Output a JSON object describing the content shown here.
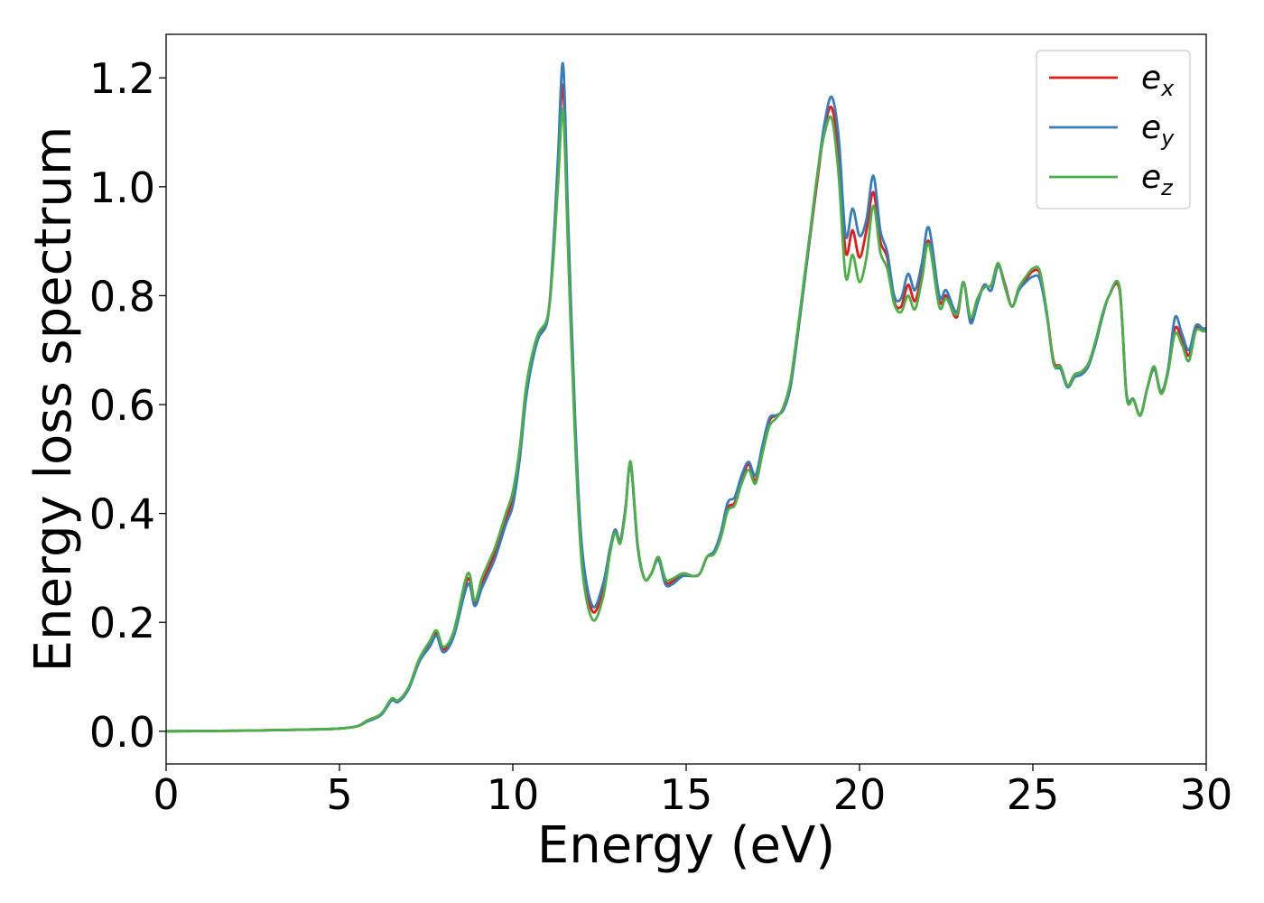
{
  "chart_data": {
    "type": "line",
    "title": "",
    "xlabel": "Energy (eV)",
    "ylabel": "Energy loss spectrum",
    "xlim": [
      0,
      30
    ],
    "ylim": [
      -0.06,
      1.28
    ],
    "xticks": [
      0,
      5,
      10,
      15,
      20,
      25,
      30
    ],
    "xtick_labels": [
      "0",
      "5",
      "10",
      "15",
      "20",
      "25",
      "30"
    ],
    "yticks": [
      0.0,
      0.2,
      0.4,
      0.6,
      0.8,
      1.0,
      1.2
    ],
    "ytick_labels": [
      "0.0",
      "0.2",
      "0.4",
      "0.6",
      "0.8",
      "1.0",
      "1.2"
    ],
    "grid": false,
    "legend_position": "top-right",
    "x": [
      0,
      2,
      4,
      5,
      5.5,
      5.8,
      6.2,
      6.5,
      6.7,
      7,
      7.3,
      7.6,
      7.8,
      8,
      8.3,
      8.7,
      8.9,
      9.1,
      9.3,
      9.5,
      9.8,
      10,
      10.2,
      10.4,
      10.7,
      11,
      11.15,
      11.3,
      11.45,
      11.6,
      11.8,
      12,
      12.3,
      12.6,
      12.8,
      12.95,
      13.1,
      13.25,
      13.4,
      13.6,
      13.8,
      14,
      14.2,
      14.4,
      14.6,
      14.9,
      15.2,
      15.4,
      15.6,
      15.8,
      16,
      16.2,
      16.4,
      16.6,
      16.8,
      17,
      17.2,
      17.4,
      17.6,
      17.8,
      18,
      18.2,
      18.4,
      18.6,
      18.8,
      19,
      19.2,
      19.4,
      19.6,
      19.8,
      20,
      20.2,
      20.4,
      20.6,
      20.8,
      21,
      21.2,
      21.4,
      21.6,
      21.8,
      22,
      22.3,
      22.5,
      22.8,
      23,
      23.2,
      23.4,
      23.6,
      23.8,
      24,
      24.2,
      24.4,
      24.6,
      24.8,
      25,
      25.2,
      25.4,
      25.6,
      25.8,
      26,
      26.2,
      26.4,
      26.6,
      26.8,
      27,
      27.2,
      27.5,
      27.7,
      27.9,
      28.1,
      28.3,
      28.5,
      28.7,
      28.9,
      29.1,
      29.3,
      29.5,
      29.7,
      29.9,
      30
    ],
    "series": [
      {
        "name": "e_x",
        "label_main": "e",
        "label_sub": "x",
        "color": "#e41a1c",
        "values": [
          0,
          0.001,
          0.003,
          0.005,
          0.009,
          0.018,
          0.03,
          0.058,
          0.055,
          0.08,
          0.13,
          0.16,
          0.18,
          0.15,
          0.18,
          0.28,
          0.235,
          0.27,
          0.3,
          0.33,
          0.39,
          0.43,
          0.51,
          0.63,
          0.72,
          0.76,
          0.86,
          1.03,
          1.185,
          0.9,
          0.55,
          0.32,
          0.22,
          0.26,
          0.33,
          0.37,
          0.35,
          0.41,
          0.49,
          0.34,
          0.28,
          0.29,
          0.32,
          0.275,
          0.275,
          0.29,
          0.285,
          0.29,
          0.32,
          0.33,
          0.36,
          0.41,
          0.42,
          0.46,
          0.49,
          0.46,
          0.52,
          0.57,
          0.58,
          0.59,
          0.63,
          0.72,
          0.82,
          0.92,
          1.02,
          1.11,
          1.145,
          1.06,
          0.88,
          0.92,
          0.87,
          0.92,
          0.99,
          0.9,
          0.87,
          0.79,
          0.78,
          0.82,
          0.79,
          0.84,
          0.9,
          0.79,
          0.8,
          0.76,
          0.825,
          0.755,
          0.79,
          0.82,
          0.81,
          0.855,
          0.82,
          0.78,
          0.815,
          0.83,
          0.845,
          0.84,
          0.77,
          0.68,
          0.67,
          0.635,
          0.655,
          0.66,
          0.675,
          0.71,
          0.76,
          0.8,
          0.81,
          0.62,
          0.61,
          0.58,
          0.63,
          0.665,
          0.62,
          0.66,
          0.74,
          0.72,
          0.69,
          0.74,
          0.735,
          0.735
        ]
      },
      {
        "name": "e_y",
        "label_main": "e",
        "label_sub": "y",
        "color": "#377eb8",
        "values": [
          0,
          0.001,
          0.003,
          0.005,
          0.009,
          0.018,
          0.03,
          0.056,
          0.054,
          0.078,
          0.127,
          0.155,
          0.175,
          0.145,
          0.175,
          0.27,
          0.23,
          0.262,
          0.29,
          0.32,
          0.38,
          0.415,
          0.5,
          0.62,
          0.715,
          0.755,
          0.87,
          1.05,
          1.225,
          0.93,
          0.57,
          0.335,
          0.23,
          0.27,
          0.335,
          0.37,
          0.35,
          0.41,
          0.49,
          0.34,
          0.28,
          0.29,
          0.315,
          0.27,
          0.27,
          0.285,
          0.285,
          0.29,
          0.32,
          0.33,
          0.365,
          0.42,
          0.43,
          0.47,
          0.495,
          0.47,
          0.525,
          0.575,
          0.58,
          0.59,
          0.63,
          0.72,
          0.82,
          0.925,
          1.03,
          1.12,
          1.165,
          1.09,
          0.91,
          0.96,
          0.91,
          0.94,
          1.02,
          0.92,
          0.88,
          0.8,
          0.795,
          0.84,
          0.81,
          0.86,
          0.925,
          0.8,
          0.81,
          0.77,
          0.825,
          0.75,
          0.785,
          0.82,
          0.81,
          0.855,
          0.815,
          0.78,
          0.81,
          0.825,
          0.835,
          0.83,
          0.765,
          0.675,
          0.665,
          0.632,
          0.65,
          0.655,
          0.67,
          0.71,
          0.76,
          0.8,
          0.815,
          0.62,
          0.61,
          0.58,
          0.63,
          0.665,
          0.625,
          0.665,
          0.76,
          0.73,
          0.7,
          0.745,
          0.74,
          0.74
        ]
      },
      {
        "name": "e_z",
        "label_main": "e",
        "label_sub": "z",
        "color": "#4daf4a",
        "values": [
          0,
          0.001,
          0.003,
          0.005,
          0.009,
          0.02,
          0.032,
          0.06,
          0.057,
          0.082,
          0.133,
          0.165,
          0.185,
          0.155,
          0.185,
          0.29,
          0.24,
          0.28,
          0.31,
          0.34,
          0.4,
          0.44,
          0.52,
          0.64,
          0.725,
          0.76,
          0.85,
          1.0,
          1.14,
          0.87,
          0.53,
          0.3,
          0.205,
          0.245,
          0.325,
          0.365,
          0.345,
          0.405,
          0.495,
          0.345,
          0.28,
          0.29,
          0.32,
          0.28,
          0.28,
          0.29,
          0.285,
          0.29,
          0.32,
          0.325,
          0.355,
          0.405,
          0.415,
          0.455,
          0.48,
          0.455,
          0.51,
          0.56,
          0.575,
          0.595,
          0.64,
          0.73,
          0.83,
          0.93,
          1.03,
          1.1,
          1.125,
          1.02,
          0.835,
          0.875,
          0.825,
          0.87,
          0.965,
          0.88,
          0.85,
          0.785,
          0.77,
          0.8,
          0.775,
          0.83,
          0.895,
          0.78,
          0.795,
          0.765,
          0.825,
          0.76,
          0.795,
          0.815,
          0.82,
          0.86,
          0.815,
          0.78,
          0.815,
          0.835,
          0.85,
          0.845,
          0.77,
          0.675,
          0.67,
          0.635,
          0.655,
          0.66,
          0.675,
          0.715,
          0.765,
          0.8,
          0.815,
          0.615,
          0.61,
          0.58,
          0.63,
          0.67,
          0.62,
          0.66,
          0.73,
          0.71,
          0.68,
          0.735,
          0.735,
          0.735
        ]
      }
    ]
  }
}
